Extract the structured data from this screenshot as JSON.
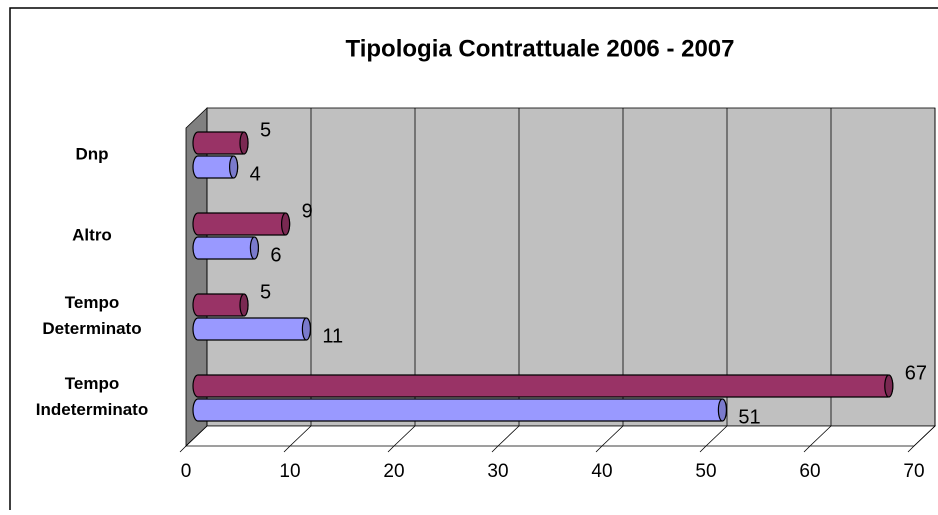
{
  "chart_data": {
    "type": "bar",
    "orientation": "horizontal",
    "three_d": true,
    "title": "Tipologia Contrattuale 2006 - 2007",
    "categories": [
      "Dnp",
      "Altro",
      "Tempo Determinato",
      "Tempo Indeterminato"
    ],
    "series": [
      {
        "color": "#993366",
        "values": [
          5,
          9,
          5,
          67
        ]
      },
      {
        "color": "#9999ff",
        "values": [
          4,
          6,
          11,
          51
        ]
      }
    ],
    "xlim": [
      0,
      70
    ],
    "xticks": [
      0,
      10,
      20,
      30,
      40,
      50,
      60,
      70
    ],
    "grid": true
  }
}
